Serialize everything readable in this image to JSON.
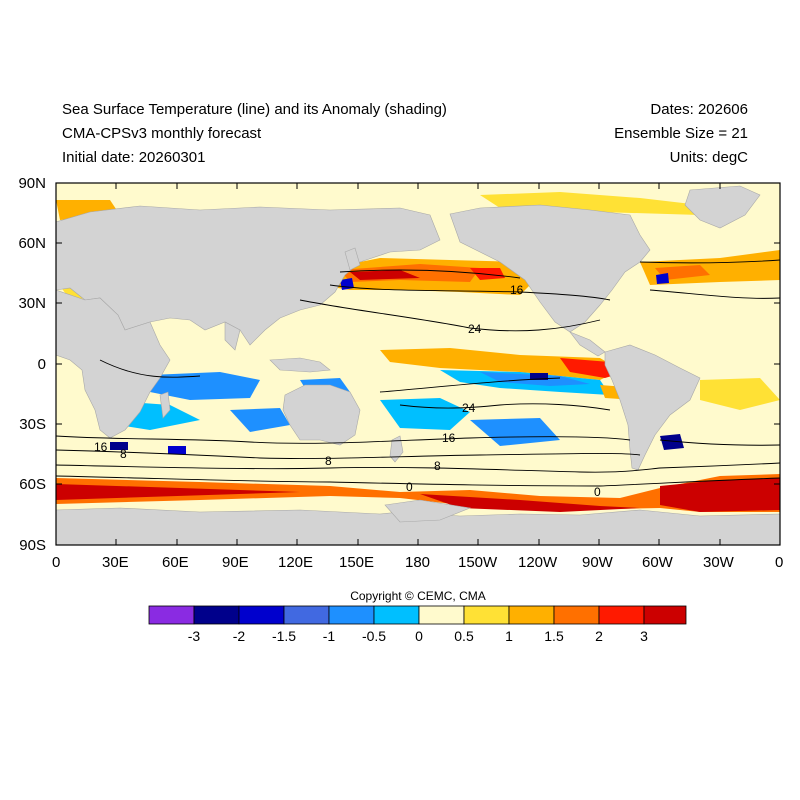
{
  "header": {
    "title_left": "Sea Surface Temperature (line) and its Anomaly (shading)",
    "subtitle_left": "CMA-CPSv3 monthly forecast",
    "initial_date": "Initial date: 20260301",
    "dates": "Dates: 202606",
    "ensemble": "Ensemble Size = 21",
    "units": "Units: degC"
  },
  "axes": {
    "y_ticks": [
      "90N",
      "60N",
      "30N",
      "0",
      "30S",
      "60S",
      "90S"
    ],
    "x_ticks": [
      "0",
      "30E",
      "60E",
      "90E",
      "120E",
      "150E",
      "180",
      "150W",
      "120W",
      "90W",
      "60W",
      "30W",
      "0"
    ]
  },
  "contour_labels": [
    "16",
    "24",
    "24",
    "16",
    "16",
    "8",
    "8",
    "8",
    "0",
    "0"
  ],
  "colorbar": {
    "levels": [
      "-3",
      "-2",
      "-1.5",
      "-1",
      "-0.5",
      "0",
      "0.5",
      "1",
      "1.5",
      "2",
      "3"
    ],
    "colors": [
      "#8a2be2",
      "#00008b",
      "#0000cd",
      "#4169e1",
      "#1e90ff",
      "#00bfff",
      "#fffacd",
      "#ffe135",
      "#ffb000",
      "#ff7000",
      "#ff1a00",
      "#cc0000"
    ]
  },
  "copyright": "Copyright © CEMC, CMA",
  "colors": {
    "land": "#d3d3d3",
    "ocean_neutral": "#fffacd"
  }
}
